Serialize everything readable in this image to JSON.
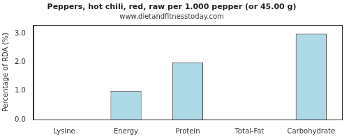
{
  "chart_data": {
    "type": "bar",
    "title": "Peppers, hot chili, red, raw per 1.000 pepper (or 45.00 g)",
    "subtitle": "www.dietandfitnesstoday.com",
    "y_label": "Percentage of RDA (%)",
    "categories": [
      "Lysine",
      "Energy",
      "Protein",
      "Total-Fat",
      "Carbohydrate"
    ],
    "values": [
      0,
      1,
      2,
      0,
      3
    ],
    "color": "#add8e6",
    "ylim": [
      0,
      3.3
    ],
    "yticks": [
      {
        "value": 0,
        "label": "0.0"
      },
      {
        "value": 1,
        "label": "1.0"
      },
      {
        "value": 2,
        "label": "2.0"
      },
      {
        "value": 3,
        "label": "3.0"
      }
    ],
    "grid": false
  }
}
